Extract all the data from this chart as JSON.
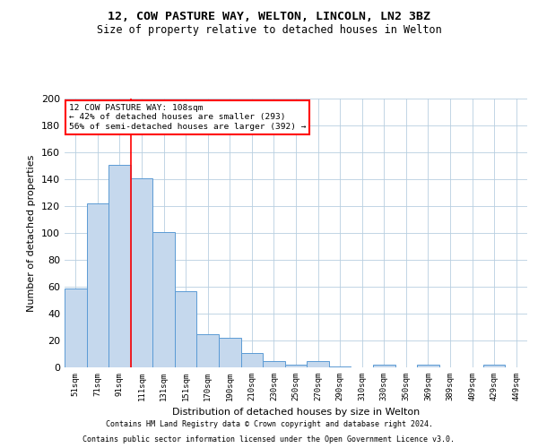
{
  "title": "12, COW PASTURE WAY, WELTON, LINCOLN, LN2 3BZ",
  "subtitle": "Size of property relative to detached houses in Welton",
  "xlabel": "Distribution of detached houses by size in Welton",
  "ylabel": "Number of detached properties",
  "categories": [
    "51sqm",
    "71sqm",
    "91sqm",
    "111sqm",
    "131sqm",
    "151sqm",
    "170sqm",
    "190sqm",
    "210sqm",
    "230sqm",
    "250sqm",
    "270sqm",
    "290sqm",
    "310sqm",
    "330sqm",
    "350sqm",
    "369sqm",
    "389sqm",
    "409sqm",
    "429sqm",
    "449sqm"
  ],
  "values": [
    59,
    122,
    151,
    141,
    101,
    57,
    25,
    22,
    11,
    5,
    2,
    5,
    1,
    0,
    2,
    0,
    2,
    0,
    0,
    2,
    0
  ],
  "bar_color": "#c5d8ed",
  "bar_edge_color": "#5b9bd5",
  "vline_x": 2.5,
  "vline_color": "red",
  "annotation_line1": "12 COW PASTURE WAY: 108sqm",
  "annotation_line2": "← 42% of detached houses are smaller (293)",
  "annotation_line3": "56% of semi-detached houses are larger (392) →",
  "annotation_box_color": "white",
  "annotation_box_edge_color": "red",
  "ylim": [
    0,
    200
  ],
  "yticks": [
    0,
    20,
    40,
    60,
    80,
    100,
    120,
    140,
    160,
    180,
    200
  ],
  "footer1": "Contains HM Land Registry data © Crown copyright and database right 2024.",
  "footer2": "Contains public sector information licensed under the Open Government Licence v3.0.",
  "background_color": "#ffffff",
  "grid_color": "#b8cfe0"
}
